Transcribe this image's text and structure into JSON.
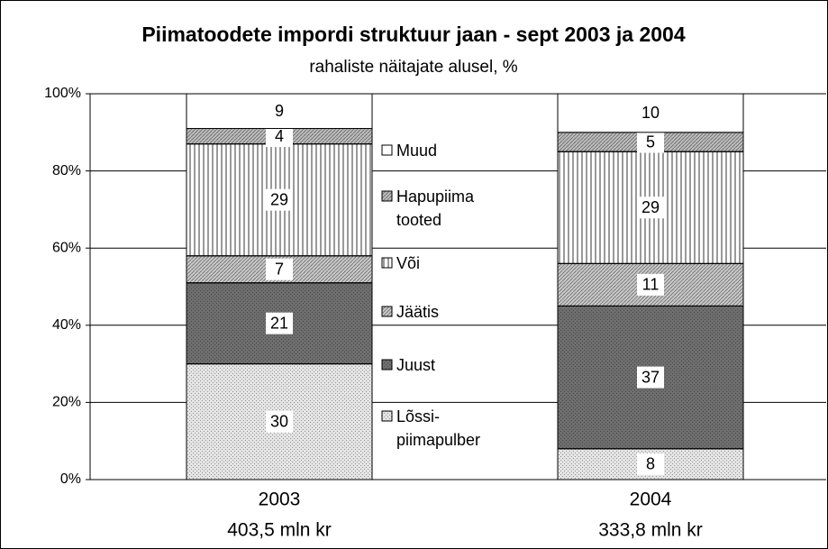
{
  "chart_data": {
    "type": "stacked_bar",
    "title": "Piimatoodete impordi struktuur jaan - sept 2003 ja 2004",
    "subtitle": "rahaliste näitajate alusel, %",
    "categories": [
      "2003",
      "2004"
    ],
    "category_sublabels": [
      "403,5 mln kr",
      "333,8 mln kr"
    ],
    "series": [
      {
        "name": "Lõssi-\npiimapulber",
        "color": "#e4e4e4",
        "pattern": "dots",
        "values": [
          30,
          8
        ]
      },
      {
        "name": "Juust",
        "color": "#6e6e6e",
        "pattern": "dots",
        "values": [
          21,
          37
        ]
      },
      {
        "name": "Jäätis",
        "color": "#c8c8c8",
        "pattern": "hatch",
        "values": [
          7,
          11
        ]
      },
      {
        "name": "Või",
        "color": "#ffffff",
        "pattern": "vertical",
        "values": [
          29,
          29
        ]
      },
      {
        "name": "Hapupiima\ntooted",
        "color": "#bcbcbc",
        "pattern": "hatch",
        "values": [
          4,
          5
        ]
      },
      {
        "name": "Muud",
        "color": "#ffffff",
        "pattern": "none",
        "values": [
          9,
          10
        ]
      }
    ],
    "ylim": [
      0,
      100
    ],
    "yticks": [
      {
        "value": 0,
        "label": "0%"
      },
      {
        "value": 20,
        "label": "20%"
      },
      {
        "value": 40,
        "label": "40%"
      },
      {
        "value": 60,
        "label": "60%"
      },
      {
        "value": 80,
        "label": "80%"
      },
      {
        "value": 100,
        "label": "100%"
      }
    ],
    "grid": true
  }
}
